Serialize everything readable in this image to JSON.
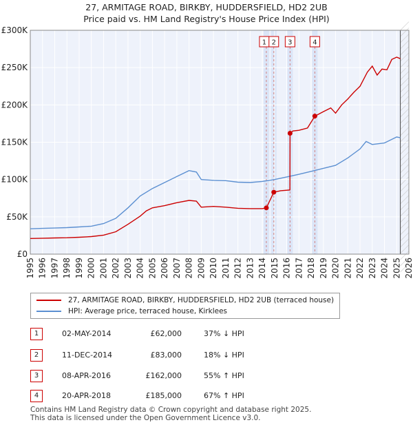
{
  "chart_data": {
    "type": "line",
    "title": "27, ARMITAGE ROAD, BIRKBY, HUDDERSFIELD, HD2 2UB",
    "subtitle": "Price paid vs. HM Land Registry's House Price Index (HPI)",
    "xlim": [
      1995,
      2026
    ],
    "ylim": [
      0,
      300000
    ],
    "y_ticks": [
      0,
      50000,
      100000,
      150000,
      200000,
      250000,
      300000
    ],
    "y_tick_labels": [
      "£0",
      "£50K",
      "£100K",
      "£150K",
      "£200K",
      "£250K",
      "£300K"
    ],
    "x_ticks": [
      "1995",
      "1996",
      "1997",
      "1998",
      "1999",
      "2000",
      "2001",
      "2002",
      "2003",
      "2004",
      "2005",
      "2006",
      "2007",
      "2008",
      "2009",
      "2010",
      "2011",
      "2012",
      "2013",
      "2014",
      "2015",
      "2016",
      "2017",
      "2018",
      "2019",
      "2020",
      "2021",
      "2022",
      "2023",
      "2024",
      "2025",
      "2026"
    ],
    "series": [
      {
        "name": "27, ARMITAGE ROAD, BIRKBY, HUDDERSFIELD, HD2 2UB (terraced house)",
        "color": "#cc0000",
        "points": [
          [
            1995,
            21000
          ],
          [
            1996,
            21300
          ],
          [
            1997,
            21700
          ],
          [
            1998,
            22000
          ],
          [
            1999,
            22600
          ],
          [
            2000,
            23500
          ],
          [
            2001,
            25500
          ],
          [
            2002,
            30000
          ],
          [
            2003,
            40000
          ],
          [
            2004,
            51000
          ],
          [
            2004.5,
            58000
          ],
          [
            2005,
            62000
          ],
          [
            2006,
            65000
          ],
          [
            2007,
            69000
          ],
          [
            2008,
            72000
          ],
          [
            2008.6,
            71000
          ],
          [
            2009,
            63000
          ],
          [
            2010,
            64000
          ],
          [
            2011,
            63000
          ],
          [
            2012,
            61500
          ],
          [
            2013,
            61000
          ],
          [
            2014,
            61000
          ],
          [
            2014.33,
            62000
          ],
          [
            2014.94,
            83000
          ],
          [
            2015.5,
            85000
          ],
          [
            2016.26,
            86000
          ],
          [
            2016.27,
            162000
          ],
          [
            2016.5,
            165000
          ],
          [
            2017,
            166000
          ],
          [
            2017.7,
            169000
          ],
          [
            2018.3,
            185000
          ],
          [
            2019,
            191000
          ],
          [
            2019.6,
            196000
          ],
          [
            2020,
            189000
          ],
          [
            2020.5,
            200000
          ],
          [
            2021,
            208000
          ],
          [
            2021.5,
            217000
          ],
          [
            2022,
            225000
          ],
          [
            2022.6,
            244000
          ],
          [
            2023,
            252000
          ],
          [
            2023.4,
            240000
          ],
          [
            2023.8,
            248000
          ],
          [
            2024.2,
            247000
          ],
          [
            2024.6,
            261000
          ],
          [
            2025,
            264000
          ],
          [
            2025.3,
            262000
          ]
        ]
      },
      {
        "name": "HPI: Average price, terraced house, Kirklees",
        "color": "#5b8fd1",
        "points": [
          [
            1995,
            34000
          ],
          [
            1996,
            34500
          ],
          [
            1997,
            35000
          ],
          [
            1998,
            35500
          ],
          [
            1999,
            36500
          ],
          [
            2000,
            37500
          ],
          [
            2001,
            41000
          ],
          [
            2002,
            48000
          ],
          [
            2003,
            62000
          ],
          [
            2004,
            78000
          ],
          [
            2005,
            88000
          ],
          [
            2006,
            96000
          ],
          [
            2007,
            104000
          ],
          [
            2008,
            112000
          ],
          [
            2008.6,
            110000
          ],
          [
            2009,
            100000
          ],
          [
            2010,
            99000
          ],
          [
            2011,
            98500
          ],
          [
            2012,
            96500
          ],
          [
            2013,
            96000
          ],
          [
            2014,
            97500
          ],
          [
            2015,
            100000
          ],
          [
            2016,
            103500
          ],
          [
            2017,
            107000
          ],
          [
            2018,
            111000
          ],
          [
            2019,
            115000
          ],
          [
            2020,
            119000
          ],
          [
            2021,
            129000
          ],
          [
            2022,
            141000
          ],
          [
            2022.5,
            151000
          ],
          [
            2023,
            147000
          ],
          [
            2024,
            149000
          ],
          [
            2025,
            157000
          ],
          [
            2025.3,
            156000
          ]
        ]
      }
    ],
    "sales": [
      {
        "label": "1",
        "x": 2014.33,
        "y": 62000
      },
      {
        "label": "2",
        "x": 2014.94,
        "y": 83000
      },
      {
        "label": "3",
        "x": 2016.27,
        "y": 162000
      },
      {
        "label": "4",
        "x": 2018.3,
        "y": 185000
      }
    ],
    "forecast_start": 2025.3
  },
  "legend": {
    "price_paid": "27, ARMITAGE ROAD, BIRKBY, HUDDERSFIELD, HD2 2UB (terraced house)",
    "hpi": "HPI: Average price, terraced house, Kirklees"
  },
  "transactions": [
    {
      "num": "1",
      "date": "02-MAY-2014",
      "price": "£62,000",
      "hpi": "37% ↓ HPI"
    },
    {
      "num": "2",
      "date": "11-DEC-2014",
      "price": "£83,000",
      "hpi": "18% ↓ HPI"
    },
    {
      "num": "3",
      "date": "08-APR-2016",
      "price": "£162,000",
      "hpi": "55% ↑ HPI"
    },
    {
      "num": "4",
      "date": "20-APR-2018",
      "price": "£185,000",
      "hpi": "67% ↑ HPI"
    }
  ],
  "footer": {
    "line1": "Contains HM Land Registry data © Crown copyright and database right 2025.",
    "line2": "This data is licensed under the Open Government Licence v3.0."
  }
}
